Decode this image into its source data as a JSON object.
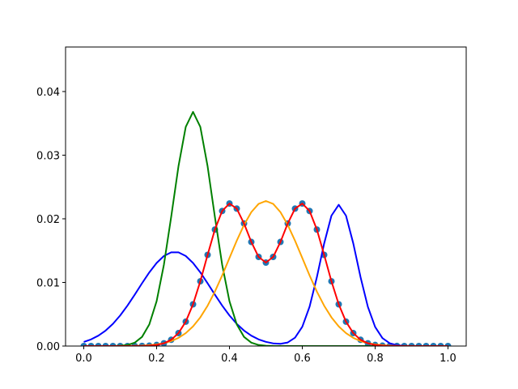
{
  "chart_data": {
    "type": "line",
    "x": [
      0,
      0.02,
      0.04,
      0.06,
      0.08,
      0.1,
      0.12,
      0.14,
      0.16,
      0.18,
      0.2,
      0.22,
      0.24,
      0.26,
      0.28,
      0.3,
      0.32,
      0.34,
      0.36,
      0.38,
      0.4,
      0.42,
      0.44,
      0.46,
      0.48,
      0.5,
      0.52,
      0.54,
      0.56,
      0.58,
      0.6,
      0.62,
      0.64,
      0.66,
      0.68,
      0.7,
      0.72,
      0.74,
      0.76,
      0.78,
      0.8,
      0.82,
      0.84,
      0.86,
      0.88,
      0.9,
      0.92,
      0.94,
      0.96,
      0.98,
      1
    ],
    "series": [
      {
        "kind": "scatter",
        "color": "#1f77b4",
        "values": [
          0,
          0,
          0,
          0,
          0,
          0,
          0,
          1e-05,
          2e-05,
          6e-05,
          0.00017,
          0.00043,
          0.00098,
          0.00203,
          0.00383,
          0.00656,
          0.01018,
          0.01433,
          0.01831,
          0.02123,
          0.0224,
          0.0216,
          0.01926,
          0.01636,
          0.01401,
          0.01312,
          0.01401,
          0.01636,
          0.01926,
          0.0216,
          0.0224,
          0.02123,
          0.01831,
          0.01433,
          0.01018,
          0.00656,
          0.00383,
          0.00203,
          0.00098,
          0.00043,
          0.00017,
          6e-05,
          2e-05,
          1e-05,
          0,
          0,
          0,
          0,
          0,
          0,
          0
        ]
      },
      {
        "kind": "line",
        "color": "blue",
        "values": [
          0.00065,
          0.00105,
          0.00163,
          0.00243,
          0.00349,
          0.00481,
          0.00636,
          0.00808,
          0.00987,
          0.01158,
          0.01306,
          0.01415,
          0.01473,
          0.01473,
          0.01415,
          0.01306,
          0.01158,
          0.00987,
          0.00808,
          0.00636,
          0.00481,
          0.00349,
          0.00243,
          0.00163,
          0.00105,
          0.00066,
          0.00042,
          0.00035,
          0.00056,
          0.00131,
          0.00303,
          0.00619,
          0.01082,
          0.01612,
          0.02049,
          0.0222,
          0.02049,
          0.01612,
          0.01081,
          0.00617,
          0.003,
          0.00125,
          0.00044,
          0.00013,
          3e-05,
          1e-05,
          0,
          0,
          0,
          0,
          0
        ]
      },
      {
        "kind": "line",
        "color": "green",
        "values": [
          0,
          0,
          0,
          0,
          0,
          5e-05,
          0.00017,
          0.00053,
          0.00144,
          0.00341,
          0.00705,
          0.01278,
          0.0203,
          0.02825,
          0.03445,
          0.0368,
          0.03445,
          0.02825,
          0.0203,
          0.01278,
          0.00705,
          0.00341,
          0.00144,
          0.00053,
          0.00017,
          5e-05,
          1e-05,
          0,
          0,
          0,
          0,
          0,
          0,
          0,
          0,
          0,
          0,
          0,
          0,
          0,
          0,
          0,
          0,
          0,
          0,
          0,
          0,
          0,
          0,
          0,
          0
        ]
      },
      {
        "kind": "line",
        "color": "orange",
        "values": [
          0,
          0,
          0,
          0,
          0,
          1e-05,
          2e-05,
          3e-05,
          7e-05,
          0.00014,
          0.00025,
          0.00045,
          0.00078,
          0.00128,
          0.00203,
          0.00309,
          0.00451,
          0.00634,
          0.00856,
          0.0111,
          0.01383,
          0.01656,
          0.01904,
          0.02105,
          0.02235,
          0.0228,
          0.02235,
          0.02105,
          0.01904,
          0.01656,
          0.01383,
          0.0111,
          0.00856,
          0.00634,
          0.00451,
          0.00309,
          0.00203,
          0.00128,
          0.00078,
          0.00045,
          0.00025,
          0.00014,
          7e-05,
          3e-05,
          2e-05,
          1e-05,
          0,
          0,
          0,
          0,
          0
        ]
      },
      {
        "kind": "line",
        "color": "red",
        "values": [
          0,
          0,
          0,
          0,
          0,
          0,
          0,
          1e-05,
          2e-05,
          6e-05,
          0.00017,
          0.00043,
          0.00098,
          0.00203,
          0.00383,
          0.00656,
          0.01018,
          0.01433,
          0.01831,
          0.02123,
          0.0224,
          0.0216,
          0.01926,
          0.01636,
          0.01401,
          0.01312,
          0.01401,
          0.01636,
          0.01926,
          0.0216,
          0.0224,
          0.02123,
          0.01831,
          0.01433,
          0.01018,
          0.00656,
          0.00383,
          0.00203,
          0.00098,
          0.00043,
          0.00017,
          6e-05,
          2e-05,
          1e-05,
          0,
          0,
          0,
          0,
          0,
          0,
          0
        ]
      }
    ],
    "xlim": [
      -0.05,
      1.05
    ],
    "ylim": [
      0,
      0.047
    ],
    "xticks": [
      {
        "value": 0,
        "label": "0.0"
      },
      0.2,
      0.4,
      0.6,
      0.8,
      {
        "value": 1,
        "label": "1.0"
      }
    ],
    "yticks": [
      {
        "value": 0,
        "label": "0.00"
      },
      {
        "value": 0.01,
        "label": "0.01"
      },
      {
        "value": 0.02,
        "label": "0.02"
      },
      {
        "value": 0.03,
        "label": "0.03"
      },
      {
        "value": 0.04,
        "label": "0.04"
      }
    ]
  }
}
